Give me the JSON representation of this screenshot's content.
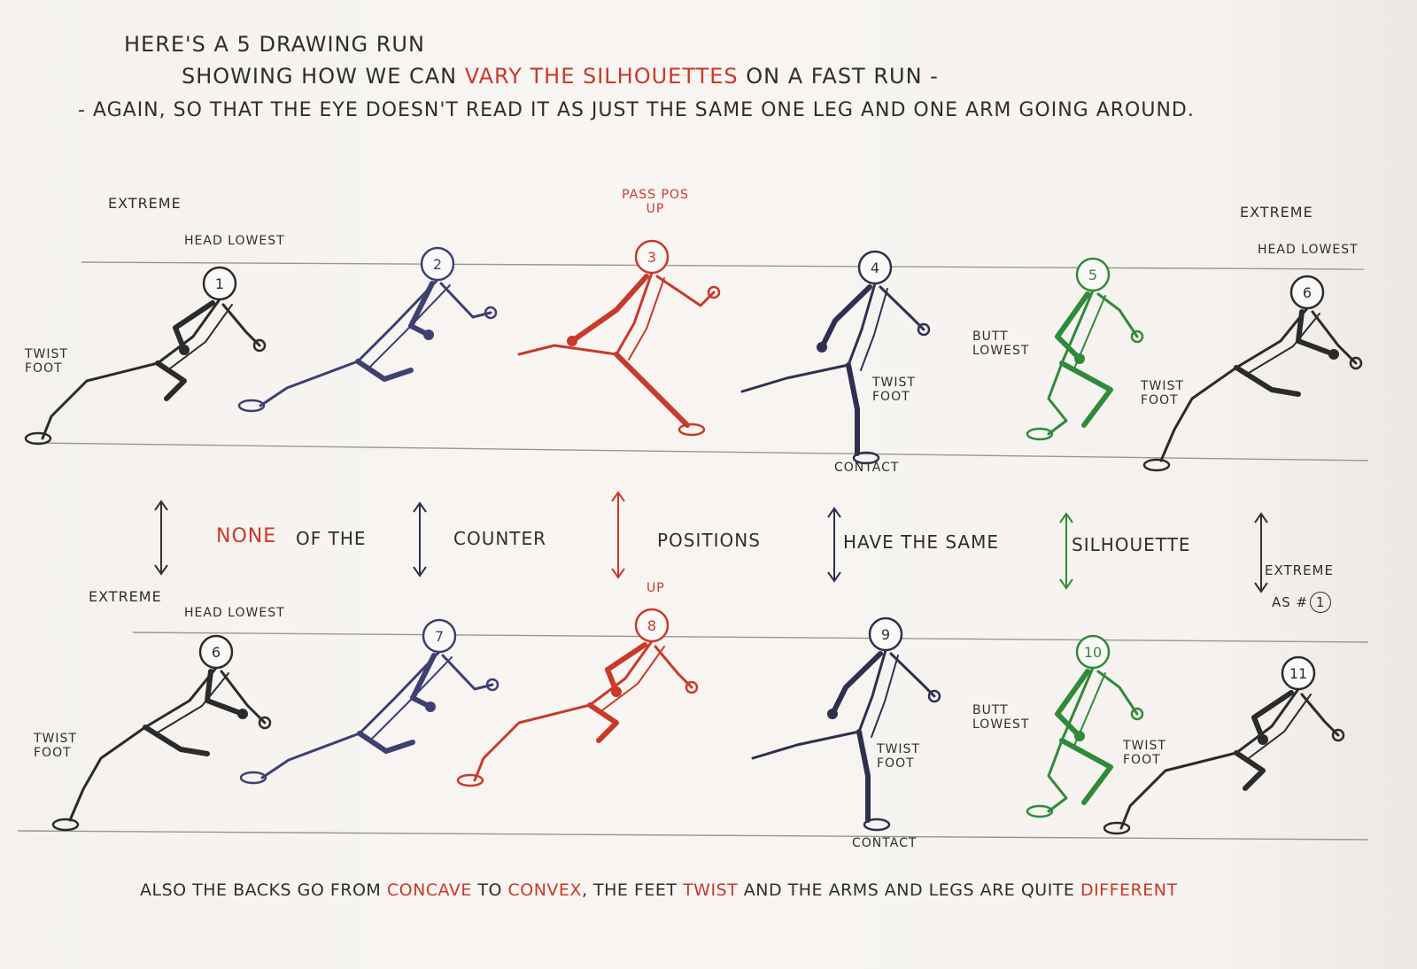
{
  "header": {
    "line1": "HERE'S A 5 DRAWING RUN",
    "line2_a": "SHOWING HOW WE CAN",
    "line2_b": "VARY THE SILHOUETTES",
    "line2_c": "ON A FAST RUN -",
    "line3": "- AGAIN, SO THAT THE EYE DOESN'T READ IT AS JUST THE SAME ONE LEG AND ONE ARM GOING AROUND."
  },
  "top_labels": {
    "extreme_left": "EXTREME",
    "head_lowest_left": "HEAD LOWEST",
    "pass_pos": "PASS POS",
    "pass_up": "UP",
    "extreme_right": "EXTREME",
    "head_lowest_right": "HEAD LOWEST"
  },
  "top_row": [
    {
      "num": "1",
      "color": "#2b2b2b",
      "note": "TWIST FOOT"
    },
    {
      "num": "2",
      "color": "#3d4070",
      "note": ""
    },
    {
      "num": "3",
      "color": "#c83a2a",
      "note": ""
    },
    {
      "num": "4",
      "color": "#2f3050",
      "note": "TWIST FOOT"
    },
    {
      "num": "5",
      "color": "#2f8a3a",
      "note": "BUTT LOWEST"
    },
    {
      "num": "6",
      "color": "#2b2b2b",
      "note": "TWIST FOOT"
    }
  ],
  "contact_top": "CONTACT",
  "middle": {
    "none": "NONE",
    "of_the": "OF THE",
    "counter": "COUNTER",
    "positions": "POSITIONS",
    "have_the_same": "HAVE THE SAME",
    "silhouette": "SILHOUETTE",
    "extreme_as": "EXTREME",
    "as_label": "AS #",
    "as_num": "1"
  },
  "bottom_labels": {
    "extreme_left": "EXTREME",
    "head_lowest_left": "HEAD LOWEST",
    "up": "UP"
  },
  "bottom_row": [
    {
      "num": "6",
      "color": "#2b2b2b",
      "note": "TWIST FOOT"
    },
    {
      "num": "7",
      "color": "#3d4070",
      "note": ""
    },
    {
      "num": "8",
      "color": "#c83a2a",
      "note": ""
    },
    {
      "num": "9",
      "color": "#2f3050",
      "note": "TWIST FOOT"
    },
    {
      "num": "10",
      "color": "#2f8a3a",
      "note": "BUTT LOWEST"
    },
    {
      "num": "11",
      "color": "#2b2b2b",
      "note": "TWIST FOOT"
    }
  ],
  "contact_bottom": "CONTACT",
  "footer": {
    "a": "ALSO THE BACKS GO FROM",
    "b": "CONCAVE",
    "c": "TO",
    "d": "CONVEX",
    "e": ", THE FEET",
    "f": "TWIST",
    "g": "AND THE ARMS AND LEGS ARE QUITE",
    "h": "DIFFERENT"
  }
}
